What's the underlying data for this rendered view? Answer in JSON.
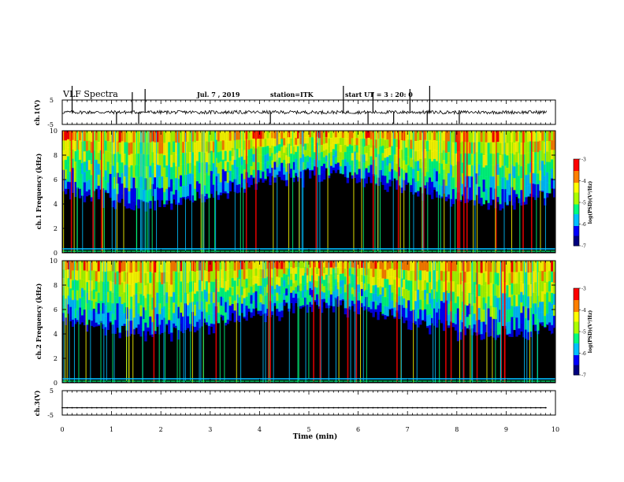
{
  "header": {
    "title": "VLF Spectra",
    "date": "Jul. 7 , 2019",
    "station": "station=ITK",
    "start": "start UT = 3 : 20: 0"
  },
  "colors": {
    "background": "#000000",
    "colormap": [
      "#00007f",
      "#0000ff",
      "#00bfff",
      "#00ff7f",
      "#aaff00",
      "#ffff00",
      "#ff7f00",
      "#ff0000",
      "#ffffff"
    ]
  },
  "chart_data": [
    {
      "type": "line",
      "name": "ch1-waveform",
      "ylabel": "ch.1(V)",
      "yticks": [
        "5",
        "-5"
      ],
      "ylim": [
        -5,
        5
      ],
      "xlim": [
        0,
        10
      ],
      "spike_times_min": [
        0.2,
        1.1,
        1.42,
        1.55,
        1.68,
        4.22,
        5.7,
        6.2,
        6.3,
        6.72,
        7.05,
        7.4,
        7.45,
        8.05
      ]
    },
    {
      "type": "heatmap",
      "name": "ch1-spectrogram",
      "ylabel": "ch.1 Frequency (kHz)",
      "yticks": [
        "0",
        "2",
        "4",
        "6",
        "8",
        "10"
      ],
      "ylim": [
        0,
        10
      ],
      "xlim": [
        0,
        10
      ],
      "colorbar": {
        "label": "log(PSD)(V²/Hz)",
        "ticks": [
          "-3",
          "-4",
          "-5",
          "-6",
          "-7"
        ],
        "range": [
          -7,
          -3
        ]
      }
    },
    {
      "type": "heatmap",
      "name": "ch2-spectrogram",
      "ylabel": "ch.2 Frequency (kHz)",
      "yticks": [
        "0",
        "2",
        "4",
        "6",
        "8",
        "10"
      ],
      "ylim": [
        0,
        10
      ],
      "xlim": [
        0,
        10
      ],
      "colorbar": {
        "label": "log(PSD)(V²/Hz)",
        "ticks": [
          "-3",
          "-4",
          "-5",
          "-6",
          "-7"
        ],
        "range": [
          -7,
          -3
        ]
      }
    },
    {
      "type": "line",
      "name": "ch3-waveform",
      "ylabel": "ch.3(V)",
      "yticks": [
        "5",
        "-5"
      ],
      "ylim": [
        -5,
        5
      ],
      "xlim": [
        0,
        10
      ],
      "level": -2
    }
  ],
  "xaxis": {
    "label": "Time (min)",
    "ticks": [
      "0",
      "1",
      "2",
      "3",
      "4",
      "5",
      "6",
      "7",
      "8",
      "9",
      "10"
    ]
  }
}
